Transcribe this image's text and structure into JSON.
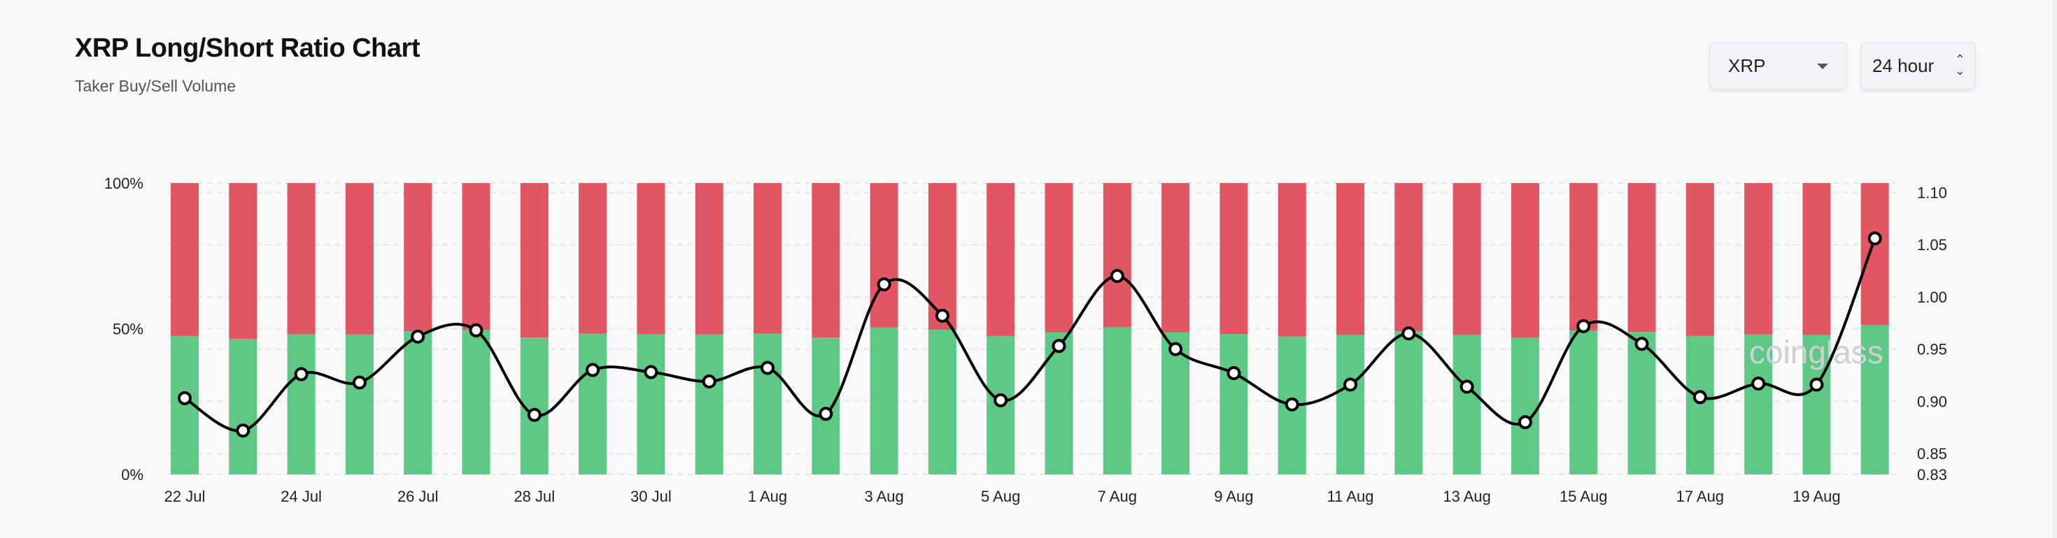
{
  "header": {
    "title": "XRP Long/Short Ratio Chart",
    "subtitle": "Taker Buy/Sell Volume"
  },
  "controls": {
    "symbol": "XRP",
    "interval": "24 hour"
  },
  "watermark": "coinglass",
  "chart_data": {
    "type": "bar+line",
    "title": "",
    "categories": [
      "22 Jul",
      "23 Jul",
      "24 Jul",
      "25 Jul",
      "26 Jul",
      "27 Jul",
      "28 Jul",
      "29 Jul",
      "30 Jul",
      "31 Jul",
      "1 Aug",
      "2 Aug",
      "3 Aug",
      "4 Aug",
      "5 Aug",
      "6 Aug",
      "7 Aug",
      "8 Aug",
      "9 Aug",
      "10 Aug",
      "11 Aug",
      "12 Aug",
      "13 Aug",
      "14 Aug",
      "15 Aug",
      "16 Aug",
      "17 Aug",
      "18 Aug",
      "19 Aug",
      "20 Aug"
    ],
    "x_tick_labels": [
      "22 Jul",
      "24 Jul",
      "26 Jul",
      "28 Jul",
      "30 Jul",
      "1 Aug",
      "3 Aug",
      "5 Aug",
      "7 Aug",
      "9 Aug",
      "11 Aug",
      "13 Aug",
      "15 Aug",
      "17 Aug",
      "19 Aug"
    ],
    "series": [
      {
        "type": "stacked-bar",
        "axis": "left",
        "unit": "%",
        "color": "#5ec987",
        "values": [
          47.5,
          46.5,
          48.1,
          48.0,
          49.1,
          49.6,
          47.0,
          48.3,
          48.1,
          48.0,
          48.3,
          47.0,
          50.4,
          49.6,
          47.5,
          48.8,
          50.5,
          48.8,
          48.2,
          47.3,
          47.8,
          49.1,
          47.8,
          46.9,
          49.4,
          48.9,
          47.5,
          48.0,
          47.8,
          51.3
        ]
      },
      {
        "type": "stacked-bar",
        "axis": "left",
        "unit": "%",
        "color": "#e25563",
        "values": [
          52.5,
          53.5,
          51.9,
          52.0,
          50.9,
          50.4,
          53.0,
          51.7,
          51.9,
          52.0,
          51.7,
          53.0,
          49.6,
          50.4,
          52.5,
          51.2,
          49.5,
          51.2,
          51.8,
          52.7,
          52.2,
          50.9,
          52.2,
          53.1,
          50.6,
          51.1,
          52.5,
          52.0,
          52.2,
          48.7
        ]
      },
      {
        "type": "line",
        "axis": "right",
        "color": "#000000",
        "values": [
          0.903,
          0.872,
          0.926,
          0.918,
          0.962,
          0.968,
          0.887,
          0.93,
          0.928,
          0.919,
          0.932,
          0.888,
          1.012,
          0.982,
          0.901,
          0.953,
          1.02,
          0.95,
          0.927,
          0.897,
          0.916,
          0.965,
          0.914,
          0.88,
          0.972,
          0.955,
          0.904,
          0.917,
          0.916,
          1.056
        ]
      }
    ],
    "left_axis": {
      "ticks": [
        "100%",
        "50%",
        "0%"
      ],
      "range": [
        0,
        100
      ]
    },
    "right_axis": {
      "ticks": [
        "1.10",
        "1.05",
        "1.00",
        "0.95",
        "0.90",
        "0.85",
        "0.83"
      ],
      "range": [
        0.83,
        1.109
      ]
    },
    "grid": true,
    "legend": "none"
  }
}
